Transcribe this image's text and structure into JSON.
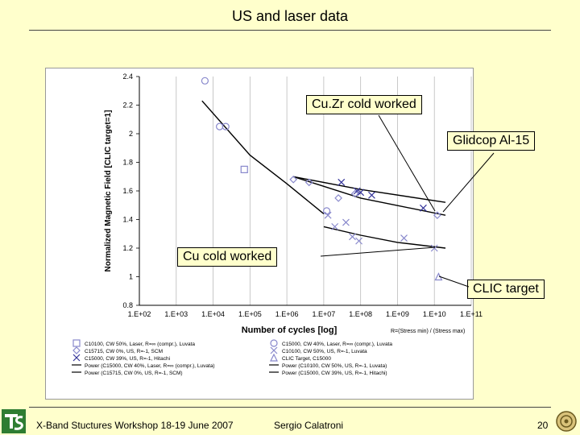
{
  "slide": {
    "title": "US and laser data",
    "footer_left": "X-Band Stuctures Workshop 18-19 June 2007",
    "footer_center": "Sergio Calatroni",
    "page_number": "20",
    "callouts": {
      "cuzr": "Cu.Zr cold worked",
      "glidcop": "Glidcop Al-15",
      "cu": "Cu cold worked",
      "clic": "CLIC target"
    },
    "colors": {
      "background": "#ffffcc",
      "chart_bg": "#ffffff",
      "marker": "#8888cc",
      "fit": "#000000"
    }
  },
  "chart_data": {
    "type": "scatter",
    "xscale": "log",
    "xlim": [
      100,
      100000000000.0
    ],
    "ylim": [
      0.8,
      2.4
    ],
    "xlabel": "Number of cycles [log]",
    "ylabel": "Normalized Magnetic Field [CLIC target=1]",
    "note": "R=(Stress min) / (Stress max)",
    "xticks": [
      "1.E+02",
      "1.E+03",
      "1.E+04",
      "1.E+05",
      "1.E+06",
      "1.E+07",
      "1.E+08",
      "1.E+09",
      "1.E+10",
      "1.E+11"
    ],
    "yticks": [
      "0.8",
      "1",
      "1.2",
      "1.4",
      "1.6",
      "1.8",
      "2",
      "2.2",
      "2.4"
    ],
    "grid": "vertical",
    "legend_position": "bottom",
    "series": [
      {
        "name": "C10100, CW 50%, Laser, R=∞ (compr.), Luvata",
        "marker": "square",
        "points": [
          [
            70000.0,
            1.75
          ]
        ]
      },
      {
        "name": "C15000, CW 40%, Laser, R=∞ (compr.), Luvata",
        "marker": "circle",
        "points": [
          [
            6000.0,
            2.37
          ],
          [
            15000.0,
            2.05
          ],
          [
            22000.0,
            2.05
          ],
          [
            12000000.0,
            1.46
          ]
        ]
      },
      {
        "name": "C15715, CW 0%, US, R=-1, SCM",
        "marker": "diamond",
        "points": [
          [
            1500000.0,
            1.68
          ],
          [
            4000000.0,
            1.66
          ],
          [
            25000000.0,
            1.55
          ],
          [
            70000000.0,
            1.58
          ],
          [
            12000000000.0,
            1.43
          ]
        ]
      },
      {
        "name": "C10100, CW 50%, US, R=-1, Luvata",
        "marker": "cross",
        "points": [
          [
            13000000.0,
            1.43
          ],
          [
            20000000.0,
            1.35
          ],
          [
            40000000.0,
            1.38
          ],
          [
            60000000.0,
            1.28
          ],
          [
            90000000.0,
            1.25
          ],
          [
            1500000000.0,
            1.27
          ],
          [
            10000000000.0,
            1.2
          ]
        ]
      },
      {
        "name": "C15000, CW 39%, US, R=-1, Hitachi",
        "marker": "x",
        "points": [
          [
            30000000.0,
            1.66
          ],
          [
            80000000.0,
            1.6
          ],
          [
            100000000.0,
            1.59
          ],
          [
            200000000.0,
            1.57
          ],
          [
            5000000000.0,
            1.48
          ]
        ]
      },
      {
        "name": "CLIC Target, C15000",
        "marker": "triangle",
        "points": [
          [
            13000000000.0,
            1.0
          ]
        ]
      }
    ],
    "fits": [
      {
        "name": "Power (C15000, CW 40%, Laser, R=∞ (compr.), Luvata)",
        "points": [
          [
            5000.0,
            2.23
          ],
          [
            100000.0,
            1.85
          ],
          [
            1000000.0,
            1.65
          ],
          [
            10000000.0,
            1.44
          ]
        ]
      },
      {
        "name": "Power (C10100, CW 50%, US, R=-1, Luvata)",
        "points": [
          [
            10000000.0,
            1.35
          ],
          [
            100000000.0,
            1.29
          ],
          [
            1000000000.0,
            1.24
          ],
          [
            20000000000.0,
            1.2
          ]
        ]
      },
      {
        "name": "Power (C15715, CW 0%, US, R=-1, SCM)",
        "points": [
          [
            1500000.0,
            1.7
          ],
          [
            100000000.0,
            1.55
          ],
          [
            20000000000.0,
            1.43
          ]
        ]
      },
      {
        "name": "Power (C15000, CW 39%, US, R=-1, Hitachi)",
        "points": [
          [
            1500000.0,
            1.7
          ],
          [
            100000000.0,
            1.61
          ],
          [
            20000000000.0,
            1.52
          ]
        ]
      }
    ]
  }
}
